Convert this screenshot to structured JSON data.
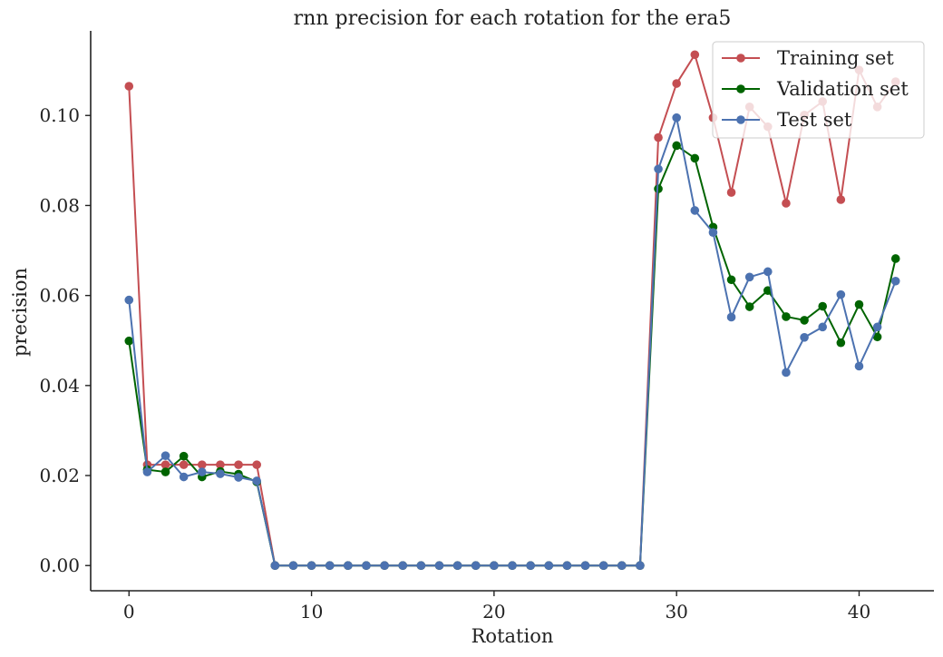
{
  "chart_data": {
    "type": "line",
    "title": "rnn precision for each rotation for the era5",
    "xlabel": "Rotation",
    "ylabel": "precision",
    "xlim": [
      -2.1,
      44.1
    ],
    "ylim": [
      -0.0056,
      0.1188
    ],
    "x_ticks": [
      0,
      10,
      20,
      30,
      40
    ],
    "x_tick_labels": [
      "0",
      "10",
      "20",
      "30",
      "40"
    ],
    "y_ticks": [
      0.0,
      0.02,
      0.04,
      0.06,
      0.08,
      0.1
    ],
    "y_tick_labels": [
      "0.00",
      "0.02",
      "0.04",
      "0.06",
      "0.08",
      "0.10"
    ],
    "legend_position": "top-right",
    "grid": false,
    "x": [
      0,
      1,
      2,
      3,
      4,
      5,
      6,
      7,
      8,
      9,
      10,
      11,
      12,
      13,
      14,
      15,
      16,
      17,
      18,
      19,
      20,
      21,
      22,
      23,
      24,
      25,
      26,
      27,
      28,
      29,
      30,
      31,
      32,
      33,
      34,
      35,
      36,
      37,
      38,
      39,
      40,
      41,
      42
    ],
    "series": [
      {
        "name": "Training set",
        "color": "#c44e52",
        "values": [
          0.1065,
          0.0224,
          0.0224,
          0.0224,
          0.0224,
          0.0224,
          0.0224,
          0.0224,
          0,
          0,
          0,
          0,
          0,
          0,
          0,
          0,
          0,
          0,
          0,
          0,
          0,
          0,
          0,
          0,
          0,
          0,
          0,
          0,
          0,
          0.0951,
          0.1071,
          0.1135,
          0.0995,
          0.0829,
          0.1019,
          0.0975,
          0.0805,
          0.1001,
          0.1031,
          0.0813,
          0.1101,
          0.1019,
          0.1075
        ]
      },
      {
        "name": "Validation set",
        "color": "#006400",
        "values": [
          0.0499,
          0.0213,
          0.0208,
          0.0243,
          0.0197,
          0.0209,
          0.0203,
          0.0186,
          0,
          0,
          0,
          0,
          0,
          0,
          0,
          0,
          0,
          0,
          0,
          0,
          0,
          0,
          0,
          0,
          0,
          0,
          0,
          0,
          0,
          0.0837,
          0.0933,
          0.0905,
          0.0752,
          0.0635,
          0.0575,
          0.0611,
          0.0553,
          0.0545,
          0.0576,
          0.0495,
          0.058,
          0.0508,
          0.0682
        ]
      },
      {
        "name": "Test set",
        "color": "#4c72b0",
        "values": [
          0.059,
          0.0208,
          0.0244,
          0.0197,
          0.0208,
          0.0204,
          0.0196,
          0.0188,
          0,
          0,
          0,
          0,
          0,
          0,
          0,
          0,
          0,
          0,
          0,
          0,
          0,
          0,
          0,
          0,
          0,
          0,
          0,
          0,
          0,
          0.0881,
          0.0995,
          0.0789,
          0.074,
          0.0552,
          0.0641,
          0.0653,
          0.0429,
          0.0507,
          0.053,
          0.0602,
          0.0443,
          0.053,
          0.0632
        ]
      }
    ]
  }
}
